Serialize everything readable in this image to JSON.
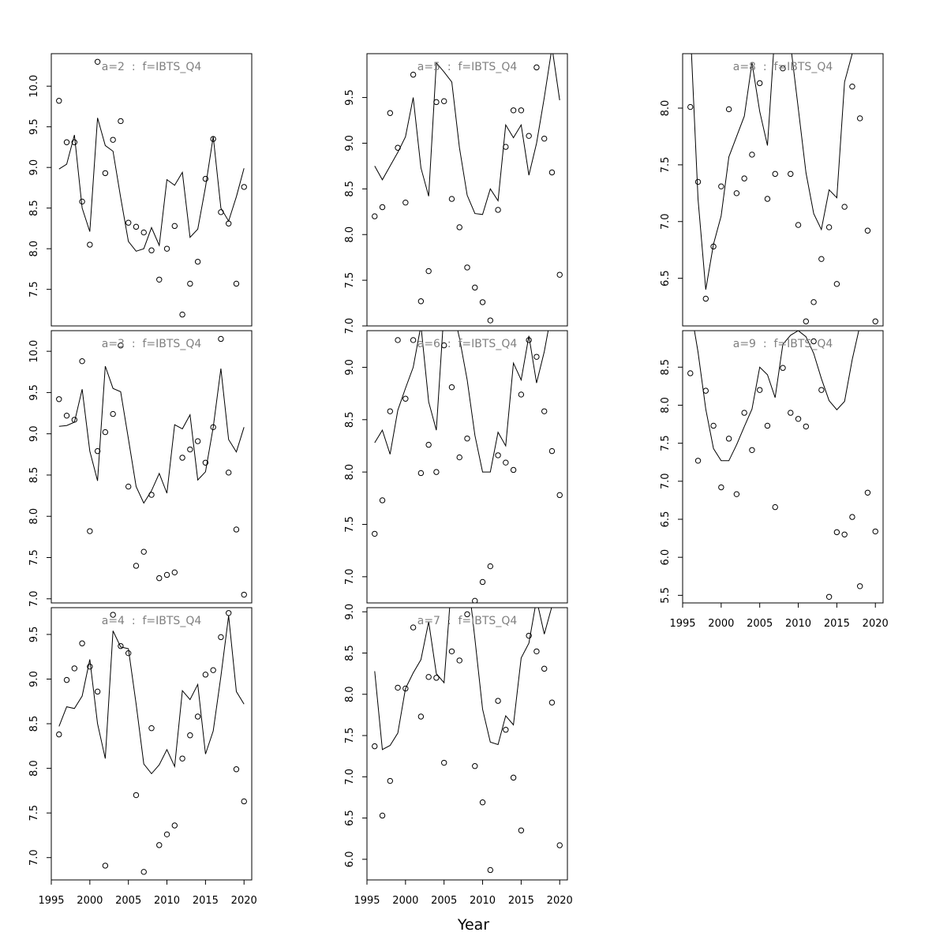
{
  "chart_data": {
    "type": "scatter",
    "title": "",
    "xlabel": "Year",
    "panels": [
      {
        "title": "a=2  :  f=IBTS_Q4",
        "ylim": [
          7.05,
          10.4
        ],
        "y_ticks": [
          "7.5",
          "8.0",
          "8.5",
          "9.0",
          "9.5",
          "10.0"
        ],
        "x_tick_labels": [],
        "points": [
          9.82,
          9.31,
          9.31,
          8.58,
          8.05,
          10.3,
          8.93,
          9.34,
          9.57,
          8.32,
          8.27,
          8.2,
          7.98,
          7.62,
          8.0,
          8.28,
          7.19,
          7.57,
          7.84,
          8.86,
          9.35,
          8.45,
          8.31,
          7.57,
          8.76
        ],
        "line": [
          8.98,
          9.04,
          9.4,
          8.5,
          8.21,
          9.61,
          9.27,
          9.2,
          8.63,
          8.09,
          7.97,
          8.0,
          8.26,
          8.04,
          8.85,
          8.78,
          8.94,
          8.14,
          8.24,
          8.76,
          9.38,
          8.5,
          8.34,
          8.64,
          8.99
        ]
      },
      {
        "title": "a=3  :  f=IBTS_Q4",
        "ylim": [
          6.95,
          10.25
        ],
        "y_ticks": [
          "7.0",
          "7.5",
          "8.0",
          "8.5",
          "9.0",
          "9.5",
          "10.0"
        ],
        "x_tick_labels": [],
        "points": [
          9.42,
          9.22,
          9.17,
          9.88,
          7.82,
          8.79,
          9.02,
          9.24,
          10.07,
          8.36,
          7.4,
          7.57,
          8.26,
          7.25,
          7.29,
          7.32,
          8.71,
          8.81,
          8.91,
          8.65,
          9.08,
          10.15,
          8.53,
          7.84,
          7.05
        ],
        "line": [
          9.09,
          9.1,
          9.14,
          9.54,
          8.79,
          8.43,
          9.82,
          9.55,
          9.51,
          8.94,
          8.36,
          8.16,
          8.31,
          8.52,
          8.28,
          9.11,
          9.06,
          9.23,
          8.44,
          8.54,
          9.08,
          9.79,
          8.93,
          8.78,
          9.08
        ]
      },
      {
        "title": "a=4  :  f=IBTS_Q4",
        "ylim": [
          6.75,
          9.8
        ],
        "y_ticks": [
          "7.0",
          "7.5",
          "8.0",
          "8.5",
          "9.0",
          "9.5"
        ],
        "x_tick_labels": [
          "1995",
          "2000",
          "2005",
          "2010",
          "2015",
          "2020"
        ],
        "points": [
          8.38,
          8.99,
          9.12,
          9.4,
          9.14,
          8.86,
          6.91,
          9.72,
          9.37,
          9.29,
          7.7,
          6.84,
          8.45,
          7.14,
          7.26,
          7.36,
          8.11,
          8.37,
          8.58,
          9.05,
          9.1,
          9.47,
          9.74,
          7.99,
          7.63
        ],
        "line": [
          8.47,
          8.69,
          8.67,
          8.81,
          9.22,
          8.5,
          8.11,
          9.54,
          9.36,
          9.34,
          8.72,
          8.05,
          7.94,
          8.04,
          8.21,
          8.02,
          8.87,
          8.77,
          8.94,
          8.16,
          8.42,
          9.03,
          9.71,
          8.86,
          8.72
        ]
      },
      {
        "title": "a=5  :  f=IBTS_Q4",
        "ylim": [
          7.0,
          9.98
        ],
        "y_ticks": [
          "7.0",
          "7.5",
          "8.0",
          "8.5",
          "9.0",
          "9.5"
        ],
        "x_tick_labels": [],
        "points": [
          8.2,
          8.3,
          9.33,
          8.95,
          8.35,
          9.75,
          7.27,
          7.6,
          9.45,
          9.46,
          8.39,
          8.08,
          7.64,
          7.42,
          7.26,
          7.06,
          8.27,
          8.96,
          9.36,
          9.36,
          9.08,
          9.83,
          9.05,
          8.68,
          7.56
        ],
        "line": [
          8.75,
          8.6,
          8.75,
          8.9,
          9.07,
          9.5,
          8.73,
          8.42,
          9.88,
          9.78,
          9.67,
          8.95,
          8.43,
          8.23,
          8.22,
          8.5,
          8.37,
          9.2,
          9.06,
          9.2,
          8.65,
          9.0,
          9.5,
          10.05,
          9.47
        ]
      },
      {
        "title": "a=6  :  f=IBTS_Q4",
        "ylim": [
          6.75,
          9.35
        ],
        "y_ticks": [
          "7.0",
          "7.5",
          "8.0",
          "8.5",
          "9.0"
        ],
        "x_tick_labels": [],
        "points": [
          7.41,
          7.73,
          8.58,
          9.26,
          8.7,
          9.26,
          7.99,
          8.26,
          8.0,
          9.21,
          8.81,
          8.14,
          8.32,
          6.77,
          6.95,
          7.1,
          8.16,
          8.09,
          8.02,
          8.74,
          9.26,
          9.1,
          8.58,
          8.2,
          7.78
        ],
        "line": [
          8.28,
          8.4,
          8.17,
          8.59,
          8.8,
          9.0,
          9.4,
          8.67,
          8.4,
          9.55,
          9.6,
          9.28,
          8.88,
          8.35,
          8.0,
          8.0,
          8.38,
          8.25,
          9.04,
          8.88,
          9.3,
          8.85,
          9.15,
          9.55,
          9.6
        ]
      },
      {
        "title": "a=7  :  f=IBTS_Q4",
        "ylim": [
          5.75,
          9.05
        ],
        "y_ticks": [
          "6.0",
          "6.5",
          "7.0",
          "7.5",
          "8.0",
          "8.5",
          "9.0"
        ],
        "x_tick_labels": [
          "1995",
          "2000",
          "2005",
          "2010",
          "2015",
          "2020"
        ],
        "points": [
          7.37,
          6.53,
          6.95,
          8.08,
          8.07,
          8.81,
          7.73,
          8.21,
          8.2,
          7.17,
          8.52,
          8.41,
          8.97,
          7.13,
          6.69,
          5.87,
          7.92,
          7.57,
          6.99,
          6.35,
          8.71,
          8.52,
          8.31,
          7.9,
          6.17
        ],
        "line": [
          8.28,
          7.33,
          7.38,
          7.53,
          8.07,
          8.26,
          8.42,
          8.88,
          8.25,
          8.14,
          9.4,
          9.85,
          9.5,
          8.67,
          7.82,
          7.42,
          7.39,
          7.74,
          7.63,
          8.44,
          8.62,
          9.15,
          8.73,
          9.07,
          9.3
        ]
      },
      {
        "title": "a=8  :  f=IBTS_Q4",
        "ylim": [
          6.08,
          8.48
        ],
        "y_ticks": [
          "6.5",
          "7.0",
          "7.5",
          "8.0"
        ],
        "x_tick_labels": [],
        "points": [
          8.01,
          7.35,
          6.32,
          6.78,
          7.31,
          7.99,
          7.25,
          7.38,
          7.59,
          8.22,
          7.2,
          7.42,
          8.35,
          7.42,
          6.97,
          6.12,
          6.29,
          6.67,
          6.95,
          6.45,
          7.13,
          8.19,
          7.91,
          6.92,
          6.12
        ],
        "line": [
          8.7,
          7.2,
          6.4,
          6.8,
          7.05,
          7.57,
          7.75,
          7.93,
          8.4,
          7.97,
          7.67,
          8.7,
          8.9,
          8.56,
          8.0,
          7.43,
          7.07,
          6.93,
          7.28,
          7.21,
          8.23,
          8.48,
          8.75,
          8.85,
          9.0
        ]
      },
      {
        "title": "a=9  :  f=IBTS_Q4",
        "ylim": [
          5.4,
          8.98
        ],
        "y_ticks": [
          "5.5",
          "6.0",
          "6.5",
          "7.0",
          "7.5",
          "8.0",
          "8.5"
        ],
        "x_tick_labels": [
          "1995",
          "2000",
          "2005",
          "2010",
          "2015",
          "2020"
        ],
        "points": [
          8.42,
          7.27,
          8.19,
          7.73,
          6.92,
          7.56,
          6.83,
          7.9,
          7.41,
          8.2,
          7.73,
          6.66,
          8.49,
          7.9,
          7.82,
          7.72,
          8.84,
          8.2,
          5.48,
          6.33,
          6.3,
          6.53,
          5.62,
          6.85,
          6.34
        ],
        "line": [
          9.3,
          8.7,
          7.95,
          7.43,
          7.27,
          7.27,
          7.48,
          7.72,
          7.95,
          8.5,
          8.4,
          8.1,
          8.8,
          8.92,
          8.98,
          8.9,
          8.68,
          8.35,
          8.06,
          7.94,
          8.05,
          8.6,
          9.05,
          9.3,
          9.5
        ]
      }
    ]
  }
}
